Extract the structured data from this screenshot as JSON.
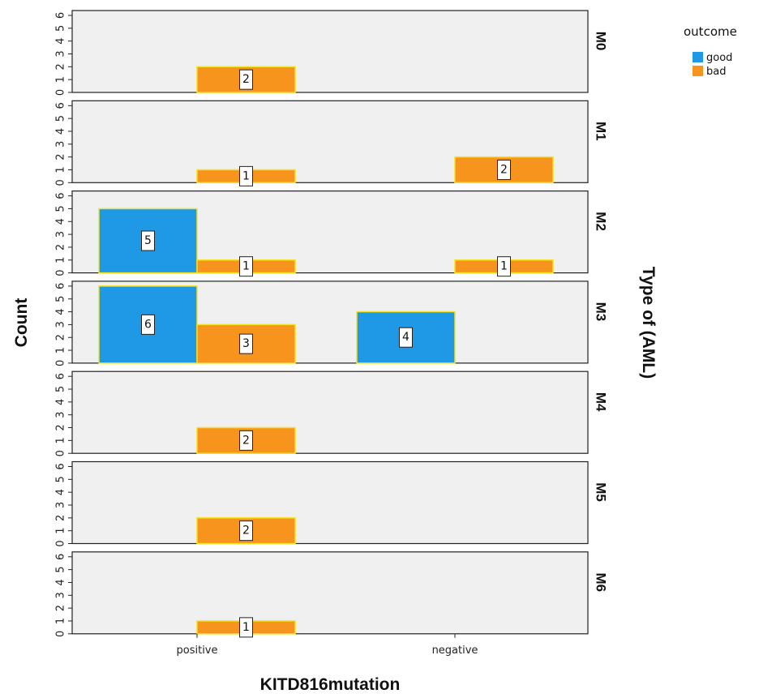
{
  "chart_data": {
    "type": "bar",
    "x_label": "KITD816mutation",
    "y_label": "Count",
    "facet_label": "Type of (AML)",
    "categories": [
      "positive",
      "negative"
    ],
    "ylim": [
      0,
      6
    ],
    "y_ticks": [
      0,
      1,
      2,
      3,
      4,
      5,
      6
    ],
    "legend": {
      "title": "outcome",
      "position": "top-right",
      "entries": [
        {
          "name": "good",
          "color": "#1f98e6"
        },
        {
          "name": "bad",
          "color": "#f7941d"
        }
      ]
    },
    "panels": [
      {
        "name": "M0",
        "series": [
          {
            "name": "good",
            "values": [
              0,
              0
            ]
          },
          {
            "name": "bad",
            "values": [
              2,
              0
            ]
          }
        ]
      },
      {
        "name": "M1",
        "series": [
          {
            "name": "good",
            "values": [
              0,
              0
            ]
          },
          {
            "name": "bad",
            "values": [
              1,
              2
            ]
          }
        ]
      },
      {
        "name": "M2",
        "series": [
          {
            "name": "good",
            "values": [
              5,
              0
            ]
          },
          {
            "name": "bad",
            "values": [
              1,
              1
            ]
          }
        ]
      },
      {
        "name": "M3",
        "series": [
          {
            "name": "good",
            "values": [
              6,
              4
            ]
          },
          {
            "name": "bad",
            "values": [
              3,
              0
            ]
          }
        ]
      },
      {
        "name": "M4",
        "series": [
          {
            "name": "good",
            "values": [
              0,
              0
            ]
          },
          {
            "name": "bad",
            "values": [
              2,
              0
            ]
          }
        ]
      },
      {
        "name": "M5",
        "series": [
          {
            "name": "good",
            "values": [
              0,
              0
            ]
          },
          {
            "name": "bad",
            "values": [
              2,
              0
            ]
          }
        ]
      },
      {
        "name": "M6",
        "series": [
          {
            "name": "good",
            "values": [
              0,
              0
            ]
          },
          {
            "name": "bad",
            "values": [
              1,
              0
            ]
          }
        ]
      }
    ],
    "colors": {
      "good": "#1f98e6",
      "bad": "#f7941d",
      "bar_border": "#f2e21f",
      "panel_bg": "#f0f0f0",
      "panel_border": "#222222"
    }
  }
}
